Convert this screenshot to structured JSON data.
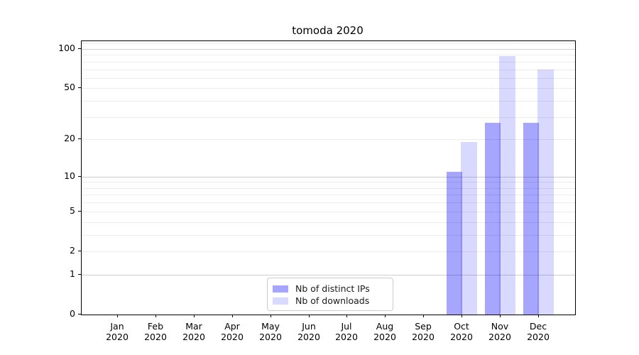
{
  "title": "tomoda 2020",
  "chart_data": {
    "type": "bar",
    "title": "tomoda 2020",
    "categories": [
      "Jan 2020",
      "Feb 2020",
      "Mar 2020",
      "Apr 2020",
      "May 2020",
      "Jun 2020",
      "Jul 2020",
      "Aug 2020",
      "Sep 2020",
      "Oct 2020",
      "Nov 2020",
      "Dec 2020"
    ],
    "series": [
      {
        "name": "Nb of distinct IPs",
        "color": "rgba(0,0,255,0.35)",
        "values": [
          0,
          0,
          0,
          0,
          0,
          0,
          0,
          0,
          0,
          11,
          27,
          27
        ]
      },
      {
        "name": "Nb of downloads",
        "color": "rgba(0,0,255,0.15)",
        "values": [
          0,
          0,
          0,
          0,
          0,
          0,
          0,
          0,
          0,
          19,
          88,
          70
        ]
      }
    ],
    "xlabel": "",
    "ylabel": "",
    "yscale": "log1p",
    "ylim": [
      0,
      114.7
    ],
    "y_ticks": [
      0,
      1,
      2,
      5,
      10,
      20,
      50,
      100
    ],
    "y_major_gridlines": [
      1,
      10,
      100
    ],
    "y_minor_gridlines": [
      2,
      3,
      4,
      5,
      6,
      7,
      8,
      9,
      20,
      30,
      40,
      50,
      60,
      70,
      80,
      90,
      110
    ],
    "grid": true,
    "legend_position": "lower center"
  },
  "legend": {
    "items": [
      {
        "label": "Nb of distinct IPs",
        "color": "rgba(0,0,255,0.35)"
      },
      {
        "label": "Nb of downloads",
        "color": "rgba(0,0,255,0.15)"
      }
    ]
  }
}
